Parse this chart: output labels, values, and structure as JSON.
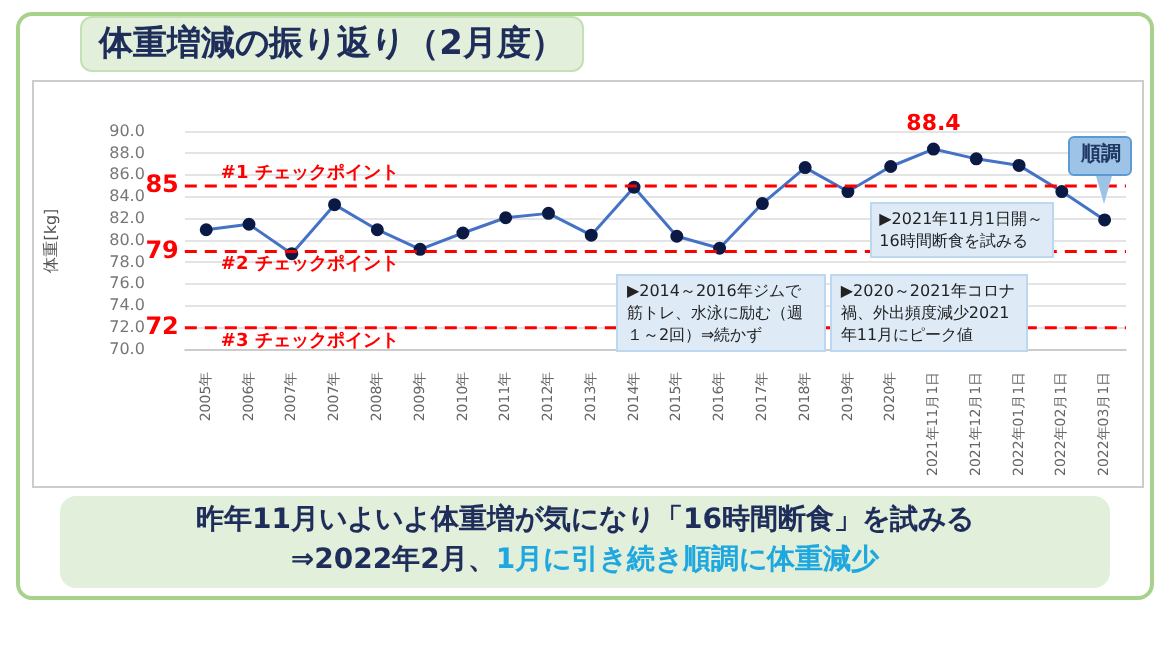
{
  "chart_data": {
    "type": "line",
    "title": "体重増減の振り返り（2月度）",
    "ylabel": "体重[kg]",
    "categories": [
      "2005年",
      "2006年",
      "2007年",
      "2007年",
      "2008年",
      "2009年",
      "2010年",
      "2011年",
      "2012年",
      "2013年",
      "2014年",
      "2015年",
      "2016年",
      "2017年",
      "2018年",
      "2019年",
      "2020年",
      "2021年11月1日",
      "2021年12月1日",
      "2022年01月1日",
      "2022年02月1日",
      "2022年03月1日"
    ],
    "series": [
      {
        "color": "#4472c4",
        "values": [
          81.0,
          81.5,
          78.8,
          83.3,
          81.0,
          79.2,
          80.7,
          82.1,
          82.5,
          80.5,
          84.9,
          80.4,
          79.3,
          83.4,
          86.7,
          84.5,
          86.8,
          88.4,
          87.5,
          86.9,
          84.5,
          81.9
        ],
        "value_labels": [
          null,
          null,
          null,
          null,
          null,
          null,
          null,
          null,
          null,
          null,
          null,
          null,
          null,
          null,
          null,
          null,
          null,
          "88.4",
          null,
          null,
          null,
          null
        ]
      }
    ],
    "ylim": [
      70,
      90
    ],
    "yticks": [
      {
        "value": 70,
        "label": "70.0"
      },
      {
        "value": 72,
        "label": "72.0"
      },
      {
        "value": 74,
        "label": "74.0"
      },
      {
        "value": 76,
        "label": "76.0"
      },
      {
        "value": 78,
        "label": "78.0"
      },
      {
        "value": 80,
        "label": "80.0"
      },
      {
        "value": 82,
        "label": "82.0"
      },
      {
        "value": 84,
        "label": "84.0"
      },
      {
        "value": 86,
        "label": "86.0"
      },
      {
        "value": 88,
        "label": "88.0"
      },
      {
        "value": 90,
        "label": "90.0"
      }
    ],
    "grid": "y",
    "legend": false,
    "marker": "circle",
    "line_style": "solid",
    "ref_lines": [
      {
        "axis": "y",
        "value": 85,
        "label": "#1 チェックポイント",
        "color": "#ff0000",
        "line_style": "dashed"
      },
      {
        "axis": "y",
        "value": 79,
        "label": "#2 チェックポイント",
        "color": "#ff0000",
        "line_style": "dashed"
      },
      {
        "axis": "y",
        "value": 72,
        "label": "#3 チェックポイント",
        "color": "#ff0000",
        "line_style": "dashed"
      }
    ],
    "annotations": [
      "85",
      "79",
      "72",
      {
        "text": "順調",
        "x": "2022年03月1日",
        "y": 81.9
      },
      "▶2014～2016年ジムで筋トレ、水泳に励む（週１～2回）⇒続かず",
      "▶2020～2021年コロナ禍、外出頻度減少2021年11月にピーク値",
      "▶2021年11月1日開～16時間断食を試みる",
      "昨年11月いよいよ体重増が気になり「16時間断食」を試みる",
      "⇒2022年2月、",
      "1月に引き続き順調に体重減少"
    ]
  }
}
